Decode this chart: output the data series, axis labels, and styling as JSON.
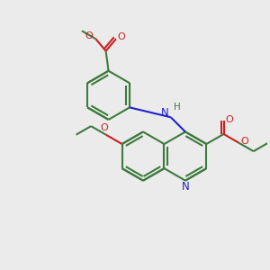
{
  "bg_color": "#ebebeb",
  "bond_color": "#3d7a3d",
  "n_color": "#2020cc",
  "o_color": "#cc2020",
  "lw": 1.5,
  "figsize": [
    3.0,
    3.0
  ],
  "dpi": 100,
  "xlim": [
    0,
    10
  ],
  "ylim": [
    0,
    10
  ]
}
